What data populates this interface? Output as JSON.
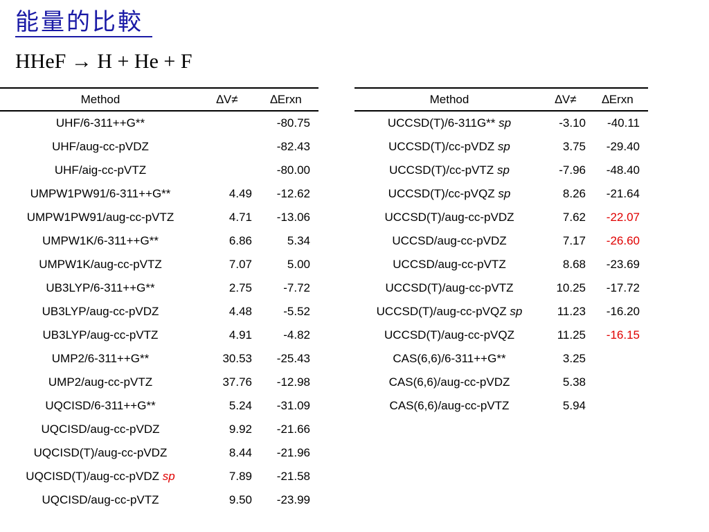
{
  "slide": {
    "title": "能量的比較",
    "subtitle": "HHeF → H + He + F"
  },
  "tables": {
    "headers": {
      "method": "Method",
      "dv": "∆V≠",
      "derxn": "∆Erxn"
    },
    "left": [
      {
        "method": "UHF/6-311++G**",
        "tag": "",
        "dv": "",
        "derxn": "-80.75"
      },
      {
        "method": "UHF/aug-cc-pVDZ",
        "tag": "",
        "dv": "",
        "derxn": "-82.43"
      },
      {
        "method": "UHF/aig-cc-pVTZ",
        "tag": "",
        "dv": "",
        "derxn": "-80.00"
      },
      {
        "method": "UMPW1PW91/6-311++G**",
        "tag": "",
        "dv": "4.49",
        "derxn": "-12.62"
      },
      {
        "method": "UMPW1PW91/aug-cc-pVTZ",
        "tag": "",
        "dv": "4.71",
        "derxn": "-13.06"
      },
      {
        "method": "UMPW1K/6-311++G**",
        "tag": "",
        "dv": "6.86",
        "derxn": "5.34"
      },
      {
        "method": "UMPW1K/aug-cc-pVTZ",
        "tag": "",
        "dv": "7.07",
        "derxn": "5.00"
      },
      {
        "method": "UB3LYP/6-311++G**",
        "tag": "",
        "dv": "2.75",
        "derxn": "-7.72"
      },
      {
        "method": "UB3LYP/aug-cc-pVDZ",
        "tag": "",
        "dv": "4.48",
        "derxn": "-5.52"
      },
      {
        "method": "UB3LYP/aug-cc-pVTZ",
        "tag": "",
        "dv": "4.91",
        "derxn": "-4.82"
      },
      {
        "method": "UMP2/6-311++G**",
        "tag": "",
        "dv": "30.53",
        "derxn": "-25.43"
      },
      {
        "method": "UMP2/aug-cc-pVTZ",
        "tag": "",
        "dv": "37.76",
        "derxn": "-12.98"
      },
      {
        "method": "UQCISD/6-311++G**",
        "tag": "",
        "dv": "5.24",
        "derxn": "-31.09"
      },
      {
        "method": "UQCISD/aug-cc-pVDZ",
        "tag": "",
        "dv": "9.92",
        "derxn": "-21.66"
      },
      {
        "method": "UQCISD(T)/aug-cc-pVDZ",
        "tag": "",
        "dv": "8.44",
        "derxn": "-21.96"
      },
      {
        "method": "UQCISD(T)/aug-cc-pVDZ",
        "tag": "sp",
        "dv": "7.89",
        "derxn": "-21.58"
      },
      {
        "method": "UQCISD/aug-cc-pVTZ",
        "tag": "",
        "dv": "9.50",
        "derxn": "-23.99"
      }
    ],
    "right": [
      {
        "method": "UCCSD(T)/6-311G**",
        "tag": "sp",
        "dv": "-3.10",
        "derxn": "-40.11"
      },
      {
        "method": "UCCSD(T)/cc-pVDZ",
        "tag": "sp",
        "dv": "3.75",
        "derxn": "-29.40"
      },
      {
        "method": "UCCSD(T)/cc-pVTZ",
        "tag": "sp",
        "dv": "-7.96",
        "derxn": "-48.40"
      },
      {
        "method": "UCCSD(T)/cc-pVQZ",
        "tag": "sp",
        "dv": "8.26",
        "derxn": "-21.64"
      },
      {
        "method": "UCCSD(T)/aug-cc-pVDZ",
        "tag": "",
        "dv": "7.62",
        "derxn": "-22.07"
      },
      {
        "method": "UCCSD/aug-cc-pVDZ",
        "tag": "",
        "dv": "7.17",
        "derxn": "-26.60"
      },
      {
        "method": "UCCSD/aug-cc-pVTZ",
        "tag": "",
        "dv": "8.68",
        "derxn": "-23.69"
      },
      {
        "method": "UCCSD(T)/aug-cc-pVTZ",
        "tag": "",
        "dv": "10.25",
        "derxn": "-17.72"
      },
      {
        "method": "UCCSD(T)/aug-cc-pVQZ",
        "tag": "sp",
        "dv": "11.23",
        "derxn": "-16.20"
      },
      {
        "method": "UCCSD(T)/aug-cc-pVQZ",
        "tag": "",
        "dv": "11.25",
        "derxn": "-16.15"
      },
      {
        "method": "CAS(6,6)/6-311++G**",
        "tag": "",
        "dv": "3.25",
        "derxn": ""
      },
      {
        "method": "CAS(6,6)/aug-cc-pVDZ",
        "tag": "",
        "dv": "5.38",
        "derxn": ""
      },
      {
        "method": "CAS(6,6)/aug-cc-pVTZ",
        "tag": "",
        "dv": "5.94",
        "derxn": ""
      }
    ]
  },
  "colors": {
    "title": "#1a1aa6",
    "highlight": "#e00000",
    "highlighted_cells": {
      "left_tag_rows": [
        15
      ],
      "right_derxn_rows": [
        4,
        5,
        9
      ]
    }
  }
}
